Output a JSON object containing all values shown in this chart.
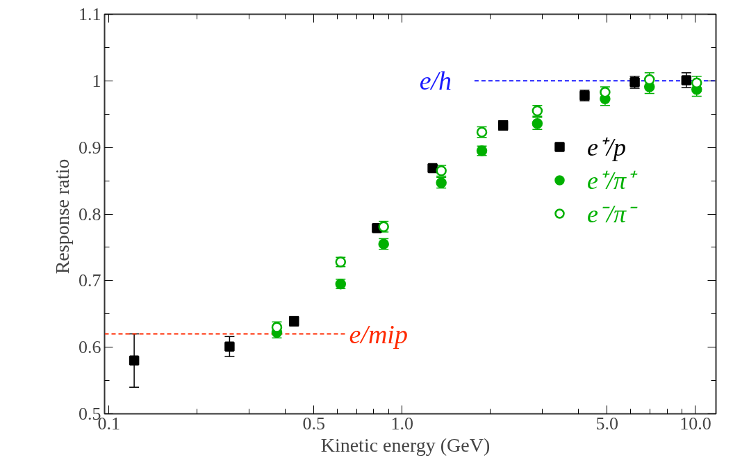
{
  "chart_data": {
    "type": "scatter",
    "xlabel": "Kinetic  energy  (GeV)",
    "ylabel": "Response  ratio",
    "log": "x",
    "grid": false,
    "legend": "right",
    "xlim": [
      0.0967,
      11.75
    ],
    "ylim": [
      0.5,
      1.1
    ],
    "xticks": [
      {
        "value": 0.1,
        "label": "0.1"
      },
      {
        "value": 0.2,
        "label": null
      },
      {
        "value": 0.3,
        "label": null
      },
      {
        "value": 0.4,
        "label": null
      },
      {
        "value": 0.5,
        "label": "0.5"
      },
      {
        "value": 0.6,
        "label": null
      },
      {
        "value": 0.7,
        "label": null
      },
      {
        "value": 0.8,
        "label": null
      },
      {
        "value": 0.9,
        "label": null
      },
      {
        "value": 1,
        "label": "1.0"
      },
      {
        "value": 2,
        "label": null
      },
      {
        "value": 3,
        "label": null
      },
      {
        "value": 4,
        "label": null
      },
      {
        "value": 5,
        "label": "5.0"
      },
      {
        "value": 6,
        "label": null
      },
      {
        "value": 7,
        "label": null
      },
      {
        "value": 8,
        "label": null
      },
      {
        "value": 9,
        "label": null
      },
      {
        "value": 10,
        "label": "10.0"
      }
    ],
    "yticks": [
      0.5,
      {
        "value": 0.55,
        "label": null
      },
      0.6,
      {
        "value": 0.65,
        "label": null
      },
      0.7,
      {
        "value": 0.75,
        "label": null
      },
      0.8,
      {
        "value": 0.85,
        "label": null
      },
      0.9,
      {
        "value": 0.95,
        "label": null
      },
      1.0,
      {
        "value": 1.05,
        "label": null
      },
      1.1
    ],
    "series": [
      {
        "name": "e⁺/p",
        "color": "#000000",
        "marker": "square",
        "x": [
          0.122,
          0.258,
          0.428,
          0.82,
          1.27,
          2.21,
          4.19,
          6.21,
          9.31
        ],
        "values": [
          0.58,
          0.601,
          0.639,
          0.779,
          0.869,
          0.933,
          0.978,
          0.998,
          1.001
        ],
        "errors": [
          0.04,
          0.015,
          0.007,
          null,
          null,
          0.007,
          0.008,
          0.009,
          0.011
        ]
      },
      {
        "name": "e⁺/π⁺",
        "color": "#00b000",
        "marker": "circle",
        "x": [
          0.374,
          0.617,
          0.865,
          1.36,
          1.87,
          2.89,
          4.92,
          6.97,
          10.1
        ],
        "values": [
          0.622,
          0.695,
          0.755,
          0.847,
          0.895,
          0.936,
          0.973,
          0.991,
          0.987
        ],
        "errors": [
          0.008,
          0.007,
          0.008,
          0.008,
          0.007,
          0.009,
          0.01,
          0.01,
          0.01
        ]
      },
      {
        "name": "e⁻/π⁻",
        "color": "#00b000",
        "marker": "circle_open",
        "x": [
          0.374,
          0.617,
          0.865,
          1.36,
          1.87,
          2.89,
          4.92,
          6.97,
          10.1
        ],
        "values": [
          0.63,
          0.728,
          0.781,
          0.865,
          0.923,
          0.955,
          0.983,
          1.002,
          0.997
        ],
        "errors": [
          0.008,
          0.007,
          0.008,
          0.008,
          0.008,
          0.008,
          0.008,
          0.01,
          0.01
        ]
      }
    ],
    "ref_lines": [
      {
        "axis": "y",
        "value": 0.62,
        "label": "e/mip",
        "color": "#ff2a00",
        "line_style": "dashed"
      },
      {
        "axis": "y",
        "value": 1.0,
        "label": "e/h",
        "color": "#1a1aff",
        "line_style": "dashed"
      }
    ]
  }
}
